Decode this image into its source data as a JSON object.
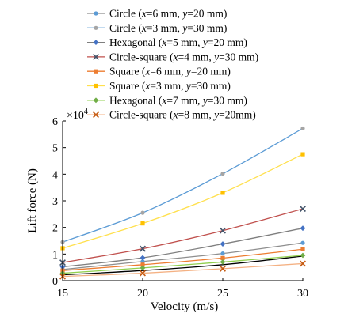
{
  "chart_data": {
    "type": "line",
    "title": "",
    "xlabel": "Velocity (m/s)",
    "ylabel": "Lift force (N)",
    "y_multiplier_label": "×10",
    "y_multiplier_exponent": "4",
    "xlim": [
      15,
      30
    ],
    "ylim": [
      0,
      6
    ],
    "xticks": [
      15,
      20,
      25,
      30
    ],
    "yticks": [
      0,
      1,
      2,
      3,
      4,
      5,
      6
    ],
    "x": [
      15,
      20,
      25,
      30
    ],
    "grid": false,
    "legend_position": "top",
    "series": [
      {
        "name": "Circle (x=6 mm, y=20 mm)",
        "label_parts": [
          [
            "Circle (",
            ""
          ],
          [
            "x",
            "i"
          ],
          [
            "=6 mm, ",
            ""
          ],
          [
            "y",
            "i"
          ],
          [
            "=20 mm)",
            ""
          ]
        ],
        "color": "#8e8e8e",
        "marker": "circle",
        "marker_color": "#5b9bd5",
        "values": [
          0.42,
          0.72,
          1.02,
          1.42
        ]
      },
      {
        "name": "Circle (x=3 mm, y=30 mm)",
        "label_parts": [
          [
            "Circle (",
            ""
          ],
          [
            "x",
            "i"
          ],
          [
            "=3 mm, ",
            ""
          ],
          [
            "y",
            "i"
          ],
          [
            "=30 mm)",
            ""
          ]
        ],
        "color": "#5b9bd5",
        "marker": "circle",
        "marker_color": "#a5a5a5",
        "values": [
          1.45,
          2.55,
          4.02,
          5.72
        ]
      },
      {
        "name": "Hexagonal (x=5 mm, y=20 mm)",
        "label_parts": [
          [
            "Hexagonal (",
            ""
          ],
          [
            "x",
            "i"
          ],
          [
            "=5 mm, ",
            ""
          ],
          [
            "y",
            "i"
          ],
          [
            "=20 mm)",
            ""
          ]
        ],
        "color": "#7f7f7f",
        "marker": "diamond",
        "marker_color": "#4472c4",
        "values": [
          0.52,
          0.86,
          1.38,
          1.97
        ]
      },
      {
        "name": "Circle-square (x=4 mm, y=30 mm)",
        "label_parts": [
          [
            "Circle-square (",
            ""
          ],
          [
            "x",
            "i"
          ],
          [
            "=4 mm, ",
            ""
          ],
          [
            "y",
            "i"
          ],
          [
            "=30 mm)",
            ""
          ]
        ],
        "color": "#c0504d",
        "marker": "x",
        "marker_color": "#44546a",
        "values": [
          0.68,
          1.2,
          1.88,
          2.7
        ]
      },
      {
        "name": "Square (x=6 mm, y=20 mm)",
        "label_parts": [
          [
            "Square (",
            ""
          ],
          [
            "x",
            "i"
          ],
          [
            "=6 mm, ",
            ""
          ],
          [
            "y",
            "i"
          ],
          [
            "=20 mm)",
            ""
          ]
        ],
        "color": "#ed7d31",
        "marker": "square",
        "marker_color": "#ed7d31",
        "values": [
          0.38,
          0.6,
          0.85,
          1.18
        ]
      },
      {
        "name": "Square (x=3 mm, y=30 mm)",
        "label_parts": [
          [
            "Square (",
            ""
          ],
          [
            "x",
            "i"
          ],
          [
            "=3 mm, ",
            ""
          ],
          [
            "y",
            "i"
          ],
          [
            "=30 mm)",
            ""
          ]
        ],
        "color": "#ffe04d",
        "marker": "square",
        "marker_color": "#ffc000",
        "values": [
          1.22,
          2.15,
          3.3,
          4.75
        ]
      },
      {
        "name": "Hexagonal (x=7 mm, y=30 mm)",
        "label_parts": [
          [
            "Hexagonal (",
            ""
          ],
          [
            "x",
            "i"
          ],
          [
            "=7 mm, ",
            ""
          ],
          [
            "y",
            "i"
          ],
          [
            "=30 mm)",
            ""
          ]
        ],
        "color": "#92d050",
        "marker": "diamond",
        "marker_color": "#70ad47",
        "values": [
          0.28,
          0.48,
          0.7,
          0.95
        ]
      },
      {
        "name": "Circle-square (x=8 mm, y=20mm)",
        "label_parts": [
          [
            "Circle-square (",
            ""
          ],
          [
            "x",
            "i"
          ],
          [
            "=8 mm, ",
            ""
          ],
          [
            "y",
            "i"
          ],
          [
            "=20mm)",
            ""
          ]
        ],
        "color": "#f4b183",
        "marker": "x",
        "marker_color": "#c55a11",
        "values": [
          0.16,
          0.28,
          0.45,
          0.64
        ]
      }
    ],
    "extra_lines": [
      {
        "color": "#000000",
        "values": [
          0.22,
          0.38,
          0.6,
          0.92
        ]
      }
    ]
  }
}
